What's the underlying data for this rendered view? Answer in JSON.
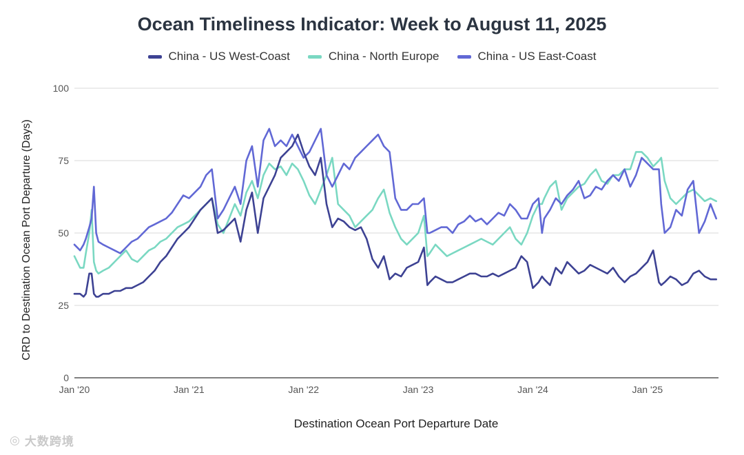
{
  "chart_data": {
    "type": "line",
    "title": "Ocean Timeliness Indicator: Week to August 11, 2025",
    "xlabel": "Destination Ocean Port Departure Date",
    "ylabel": "CRD to Destination Ocean Port Departure (Days)",
    "ylim": [
      0,
      100
    ],
    "yticks": [
      0,
      25,
      50,
      75,
      100
    ],
    "xlim": [
      2020.0,
      2025.62
    ],
    "xticks": [
      {
        "value": 2020.0,
        "label": "Jan '20"
      },
      {
        "value": 2021.0,
        "label": "Jan '21"
      },
      {
        "value": 2022.0,
        "label": "Jan '22"
      },
      {
        "value": 2023.0,
        "label": "Jan '23"
      },
      {
        "value": 2024.0,
        "label": "Jan '24"
      },
      {
        "value": 2025.0,
        "label": "Jan '25"
      }
    ],
    "grid": true,
    "legend_position": "top",
    "series": [
      {
        "name": "China - US West-Coast",
        "color": "#3d4293",
        "x": [
          2020.0,
          2020.05,
          2020.08,
          2020.1,
          2020.13,
          2020.15,
          2020.17,
          2020.19,
          2020.21,
          2020.25,
          2020.3,
          2020.35,
          2020.4,
          2020.45,
          2020.5,
          2020.55,
          2020.6,
          2020.65,
          2020.7,
          2020.75,
          2020.8,
          2020.85,
          2020.9,
          2020.95,
          2021.0,
          2021.05,
          2021.1,
          2021.15,
          2021.2,
          2021.25,
          2021.3,
          2021.35,
          2021.4,
          2021.45,
          2021.5,
          2021.55,
          2021.6,
          2021.65,
          2021.7,
          2021.75,
          2021.8,
          2021.85,
          2021.9,
          2021.95,
          2022.0,
          2022.05,
          2022.1,
          2022.15,
          2022.2,
          2022.25,
          2022.3,
          2022.35,
          2022.4,
          2022.45,
          2022.5,
          2022.55,
          2022.6,
          2022.65,
          2022.7,
          2022.75,
          2022.8,
          2022.85,
          2022.9,
          2022.95,
          2023.0,
          2023.05,
          2023.08,
          2023.1,
          2023.15,
          2023.2,
          2023.25,
          2023.3,
          2023.35,
          2023.4,
          2023.45,
          2023.5,
          2023.55,
          2023.6,
          2023.65,
          2023.7,
          2023.75,
          2023.8,
          2023.85,
          2023.9,
          2023.95,
          2024.0,
          2024.05,
          2024.08,
          2024.1,
          2024.15,
          2024.2,
          2024.25,
          2024.3,
          2024.35,
          2024.4,
          2024.45,
          2024.5,
          2024.55,
          2024.6,
          2024.65,
          2024.7,
          2024.75,
          2024.8,
          2024.85,
          2024.9,
          2024.95,
          2025.0,
          2025.05,
          2025.1,
          2025.12,
          2025.15,
          2025.2,
          2025.25,
          2025.3,
          2025.35,
          2025.4,
          2025.45,
          2025.5,
          2025.55,
          2025.6
        ],
        "values": [
          29,
          29,
          28,
          29,
          36,
          36,
          29,
          28,
          28,
          29,
          29,
          30,
          30,
          31,
          31,
          32,
          33,
          35,
          37,
          40,
          42,
          45,
          48,
          50,
          52,
          55,
          58,
          60,
          62,
          50,
          51,
          53,
          55,
          47,
          58,
          64,
          50,
          62,
          66,
          70,
          76,
          78,
          80,
          84,
          78,
          73,
          70,
          76,
          60,
          52,
          55,
          54,
          52,
          51,
          52,
          48,
          41,
          38,
          42,
          34,
          36,
          35,
          38,
          39,
          40,
          45,
          32,
          33,
          35,
          34,
          33,
          33,
          34,
          35,
          36,
          36,
          35,
          35,
          36,
          35,
          36,
          37,
          38,
          42,
          40,
          31,
          33,
          35,
          34,
          32,
          38,
          36,
          40,
          38,
          36,
          37,
          39,
          38,
          37,
          36,
          38,
          35,
          33,
          35,
          36,
          38,
          40,
          44,
          33,
          32,
          33,
          35,
          34,
          32,
          33,
          36,
          37,
          35,
          34,
          34
        ]
      },
      {
        "name": "China - North Europe",
        "color": "#7ad8c2",
        "x": [
          2020.0,
          2020.05,
          2020.08,
          2020.1,
          2020.13,
          2020.15,
          2020.17,
          2020.19,
          2020.21,
          2020.25,
          2020.3,
          2020.35,
          2020.4,
          2020.45,
          2020.5,
          2020.55,
          2020.6,
          2020.65,
          2020.7,
          2020.75,
          2020.8,
          2020.85,
          2020.9,
          2020.95,
          2021.0,
          2021.05,
          2021.1,
          2021.15,
          2021.2,
          2021.25,
          2021.3,
          2021.35,
          2021.4,
          2021.45,
          2021.5,
          2021.55,
          2021.6,
          2021.65,
          2021.7,
          2021.75,
          2021.8,
          2021.85,
          2021.9,
          2021.95,
          2022.0,
          2022.05,
          2022.1,
          2022.15,
          2022.2,
          2022.25,
          2022.3,
          2022.35,
          2022.4,
          2022.45,
          2022.5,
          2022.55,
          2022.6,
          2022.65,
          2022.7,
          2022.75,
          2022.8,
          2022.85,
          2022.9,
          2022.95,
          2023.0,
          2023.05,
          2023.08,
          2023.1,
          2023.15,
          2023.2,
          2023.25,
          2023.3,
          2023.35,
          2023.4,
          2023.45,
          2023.5,
          2023.55,
          2023.6,
          2023.65,
          2023.7,
          2023.75,
          2023.8,
          2023.85,
          2023.9,
          2023.95,
          2024.0,
          2024.05,
          2024.08,
          2024.1,
          2024.15,
          2024.2,
          2024.25,
          2024.3,
          2024.35,
          2024.4,
          2024.45,
          2024.5,
          2024.55,
          2024.6,
          2024.65,
          2024.7,
          2024.75,
          2024.8,
          2024.85,
          2024.9,
          2024.95,
          2025.0,
          2025.05,
          2025.1,
          2025.12,
          2025.15,
          2025.2,
          2025.25,
          2025.3,
          2025.35,
          2025.4,
          2025.45,
          2025.5,
          2025.55,
          2025.6
        ],
        "values": [
          42,
          38,
          38,
          43,
          50,
          58,
          40,
          37,
          36,
          37,
          38,
          40,
          42,
          44,
          41,
          40,
          42,
          44,
          45,
          47,
          48,
          50,
          52,
          53,
          54,
          56,
          58,
          60,
          62,
          53,
          50,
          55,
          60,
          56,
          64,
          68,
          62,
          70,
          74,
          72,
          73,
          70,
          74,
          72,
          68,
          63,
          60,
          65,
          70,
          76,
          60,
          58,
          56,
          52,
          54,
          56,
          58,
          62,
          65,
          57,
          52,
          48,
          46,
          48,
          50,
          56,
          42,
          43,
          46,
          44,
          42,
          43,
          44,
          45,
          46,
          47,
          48,
          47,
          46,
          48,
          50,
          52,
          48,
          46,
          50,
          56,
          60,
          60,
          62,
          66,
          68,
          58,
          62,
          64,
          66,
          67,
          70,
          72,
          68,
          67,
          70,
          70,
          72,
          72,
          78,
          78,
          76,
          73,
          75,
          76,
          68,
          62,
          60,
          62,
          64,
          65,
          63,
          61,
          62,
          61
        ]
      },
      {
        "name": "China - US East-Coast",
        "color": "#6168d5",
        "x": [
          2020.0,
          2020.05,
          2020.08,
          2020.1,
          2020.13,
          2020.15,
          2020.17,
          2020.19,
          2020.21,
          2020.25,
          2020.3,
          2020.35,
          2020.4,
          2020.45,
          2020.5,
          2020.55,
          2020.6,
          2020.65,
          2020.7,
          2020.75,
          2020.8,
          2020.85,
          2020.9,
          2020.95,
          2021.0,
          2021.05,
          2021.1,
          2021.15,
          2021.2,
          2021.25,
          2021.3,
          2021.35,
          2021.4,
          2021.45,
          2021.5,
          2021.55,
          2021.6,
          2021.65,
          2021.7,
          2021.75,
          2021.8,
          2021.85,
          2021.9,
          2021.95,
          2022.0,
          2022.05,
          2022.1,
          2022.15,
          2022.2,
          2022.25,
          2022.3,
          2022.35,
          2022.4,
          2022.45,
          2022.5,
          2022.55,
          2022.6,
          2022.65,
          2022.7,
          2022.75,
          2022.8,
          2022.85,
          2022.9,
          2022.95,
          2023.0,
          2023.05,
          2023.08,
          2023.1,
          2023.15,
          2023.2,
          2023.25,
          2023.3,
          2023.35,
          2023.4,
          2023.45,
          2023.5,
          2023.55,
          2023.6,
          2023.65,
          2023.7,
          2023.75,
          2023.8,
          2023.85,
          2023.9,
          2023.95,
          2024.0,
          2024.05,
          2024.08,
          2024.1,
          2024.15,
          2024.2,
          2024.25,
          2024.3,
          2024.35,
          2024.4,
          2024.45,
          2024.5,
          2024.55,
          2024.6,
          2024.65,
          2024.7,
          2024.75,
          2024.8,
          2024.85,
          2024.9,
          2024.95,
          2025.0,
          2025.05,
          2025.1,
          2025.12,
          2025.15,
          2025.2,
          2025.25,
          2025.3,
          2025.35,
          2025.4,
          2025.45,
          2025.5,
          2025.55,
          2025.6
        ],
        "values": [
          46,
          44,
          46,
          48,
          52,
          55,
          66,
          50,
          47,
          46,
          45,
          44,
          43,
          45,
          47,
          48,
          50,
          52,
          53,
          54,
          55,
          57,
          60,
          63,
          62,
          64,
          66,
          70,
          72,
          55,
          58,
          62,
          66,
          60,
          75,
          80,
          66,
          82,
          86,
          80,
          82,
          80,
          84,
          80,
          76,
          78,
          82,
          86,
          70,
          66,
          70,
          74,
          72,
          76,
          78,
          80,
          82,
          84,
          80,
          78,
          62,
          58,
          58,
          60,
          60,
          62,
          50,
          50,
          51,
          52,
          52,
          50,
          53,
          54,
          56,
          54,
          55,
          53,
          55,
          57,
          56,
          60,
          58,
          55,
          55,
          60,
          62,
          50,
          55,
          58,
          62,
          60,
          63,
          65,
          68,
          62,
          63,
          66,
          65,
          68,
          70,
          68,
          72,
          66,
          70,
          76,
          74,
          72,
          72,
          60,
          50,
          52,
          58,
          56,
          65,
          68,
          50,
          54,
          60,
          55
        ]
      }
    ]
  },
  "watermark": {
    "text": "大数跨境"
  }
}
